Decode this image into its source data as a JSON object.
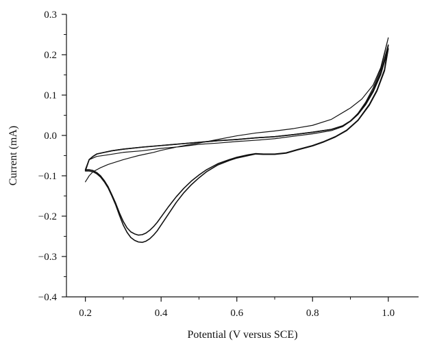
{
  "chart_data": {
    "type": "line",
    "title": "",
    "xlabel": "Potential (V versus SCE)",
    "ylabel": "Current (mA)",
    "xlim": [
      0.15,
      1.08
    ],
    "ylim": [
      -0.4,
      0.3
    ],
    "xticks": [
      0.2,
      0.4,
      0.6,
      0.8,
      1.0
    ],
    "xtick_labels": [
      "0.2",
      "0.4",
      "0.6",
      "0.8",
      "1.0"
    ],
    "yticks": [
      -0.4,
      -0.3,
      -0.2,
      -0.1,
      0.0,
      0.1,
      0.2,
      0.3
    ],
    "ytick_labels": [
      "−0.4",
      "−0.3",
      "−0.2",
      "−0.1",
      "0.0",
      "0.1",
      "0.2",
      "0.3"
    ],
    "grid": false,
    "series": [
      {
        "color": "#111111",
        "x": [
          0.2,
          0.21,
          0.22,
          0.24,
          0.26,
          0.28,
          0.3,
          0.32,
          0.34,
          0.36,
          0.38,
          0.4,
          0.42,
          0.45,
          0.5,
          0.55,
          0.6,
          0.65,
          0.7,
          0.75,
          0.8,
          0.85,
          0.9,
          0.93,
          0.96,
          0.98,
          1.0,
          1.0,
          0.98,
          0.96,
          0.94,
          0.92,
          0.9,
          0.88,
          0.85,
          0.8,
          0.75,
          0.7,
          0.65,
          0.6,
          0.55,
          0.5,
          0.45,
          0.4,
          0.35,
          0.3,
          0.26,
          0.23,
          0.21,
          0.2
        ],
        "y": [
          -0.115,
          -0.1,
          -0.09,
          -0.08,
          -0.072,
          -0.066,
          -0.06,
          -0.055,
          -0.05,
          -0.046,
          -0.042,
          -0.037,
          -0.033,
          -0.027,
          -0.019,
          -0.01,
          -0.001,
          0.006,
          0.011,
          0.017,
          0.025,
          0.04,
          0.068,
          0.09,
          0.125,
          0.168,
          0.242,
          0.242,
          0.163,
          0.118,
          0.082,
          0.055,
          0.035,
          0.022,
          0.012,
          0.004,
          -0.002,
          -0.008,
          -0.012,
          -0.015,
          -0.019,
          -0.022,
          -0.028,
          -0.032,
          -0.038,
          -0.042,
          -0.048,
          -0.052,
          -0.06,
          -0.085
        ]
      },
      {
        "color": "#111111",
        "x": [
          0.2,
          0.21,
          0.22,
          0.23,
          0.24,
          0.25,
          0.26,
          0.27,
          0.28,
          0.29,
          0.3,
          0.31,
          0.32,
          0.33,
          0.34,
          0.35,
          0.36,
          0.37,
          0.38,
          0.39,
          0.4,
          0.42,
          0.44,
          0.46,
          0.48,
          0.5,
          0.52,
          0.55,
          0.58,
          0.6,
          0.63,
          0.65,
          0.67,
          0.7,
          0.73,
          0.76,
          0.8,
          0.83,
          0.86,
          0.89,
          0.92,
          0.95,
          0.97,
          0.99,
          1.0,
          1.0,
          0.98,
          0.96,
          0.94,
          0.92,
          0.9,
          0.88,
          0.85,
          0.8,
          0.75,
          0.7,
          0.65,
          0.6,
          0.55,
          0.5,
          0.45,
          0.4,
          0.35,
          0.3,
          0.27,
          0.25,
          0.23,
          0.22,
          0.21,
          0.2
        ],
        "y": [
          -0.088,
          -0.088,
          -0.09,
          -0.095,
          -0.103,
          -0.115,
          -0.13,
          -0.15,
          -0.172,
          -0.198,
          -0.222,
          -0.24,
          -0.253,
          -0.26,
          -0.264,
          -0.265,
          -0.262,
          -0.256,
          -0.247,
          -0.236,
          -0.222,
          -0.194,
          -0.166,
          -0.142,
          -0.122,
          -0.105,
          -0.09,
          -0.073,
          -0.062,
          -0.056,
          -0.05,
          -0.046,
          -0.047,
          -0.047,
          -0.044,
          -0.036,
          -0.026,
          -0.016,
          -0.004,
          0.012,
          0.037,
          0.075,
          0.11,
          0.16,
          0.215,
          0.215,
          0.151,
          0.108,
          0.076,
          0.052,
          0.035,
          0.024,
          0.015,
          0.008,
          0.002,
          -0.003,
          -0.006,
          -0.01,
          -0.013,
          -0.017,
          -0.021,
          -0.025,
          -0.029,
          -0.034,
          -0.038,
          -0.042,
          -0.046,
          -0.052,
          -0.06,
          -0.088
        ]
      },
      {
        "color": "#111111",
        "x": [
          0.2,
          0.21,
          0.22,
          0.23,
          0.24,
          0.25,
          0.26,
          0.27,
          0.28,
          0.29,
          0.3,
          0.31,
          0.32,
          0.33,
          0.34,
          0.35,
          0.36,
          0.37,
          0.38,
          0.39,
          0.4,
          0.42,
          0.44,
          0.46,
          0.48,
          0.5,
          0.52,
          0.55,
          0.58,
          0.6,
          0.63,
          0.65,
          0.67,
          0.7,
          0.73,
          0.76,
          0.8,
          0.83,
          0.86,
          0.89,
          0.92,
          0.95,
          0.97,
          0.99,
          1.0,
          1.0,
          0.98,
          0.96,
          0.94,
          0.92,
          0.9,
          0.88,
          0.85,
          0.8,
          0.75,
          0.7,
          0.65,
          0.6,
          0.55,
          0.5,
          0.45,
          0.4,
          0.35,
          0.3,
          0.27,
          0.25,
          0.23,
          0.22,
          0.21,
          0.2
        ],
        "y": [
          -0.085,
          -0.085,
          -0.087,
          -0.092,
          -0.1,
          -0.112,
          -0.127,
          -0.147,
          -0.168,
          -0.192,
          -0.213,
          -0.229,
          -0.239,
          -0.244,
          -0.247,
          -0.246,
          -0.242,
          -0.235,
          -0.226,
          -0.215,
          -0.202,
          -0.176,
          -0.152,
          -0.131,
          -0.113,
          -0.098,
          -0.085,
          -0.07,
          -0.06,
          -0.054,
          -0.048,
          -0.045,
          -0.046,
          -0.046,
          -0.043,
          -0.035,
          -0.025,
          -0.015,
          -0.003,
          0.013,
          0.038,
          0.077,
          0.112,
          0.163,
          0.224,
          0.224,
          0.156,
          0.112,
          0.079,
          0.054,
          0.036,
          0.024,
          0.015,
          0.008,
          0.002,
          -0.003,
          -0.006,
          -0.01,
          -0.013,
          -0.017,
          -0.021,
          -0.025,
          -0.029,
          -0.034,
          -0.038,
          -0.042,
          -0.046,
          -0.052,
          -0.06,
          -0.085
        ]
      }
    ]
  }
}
